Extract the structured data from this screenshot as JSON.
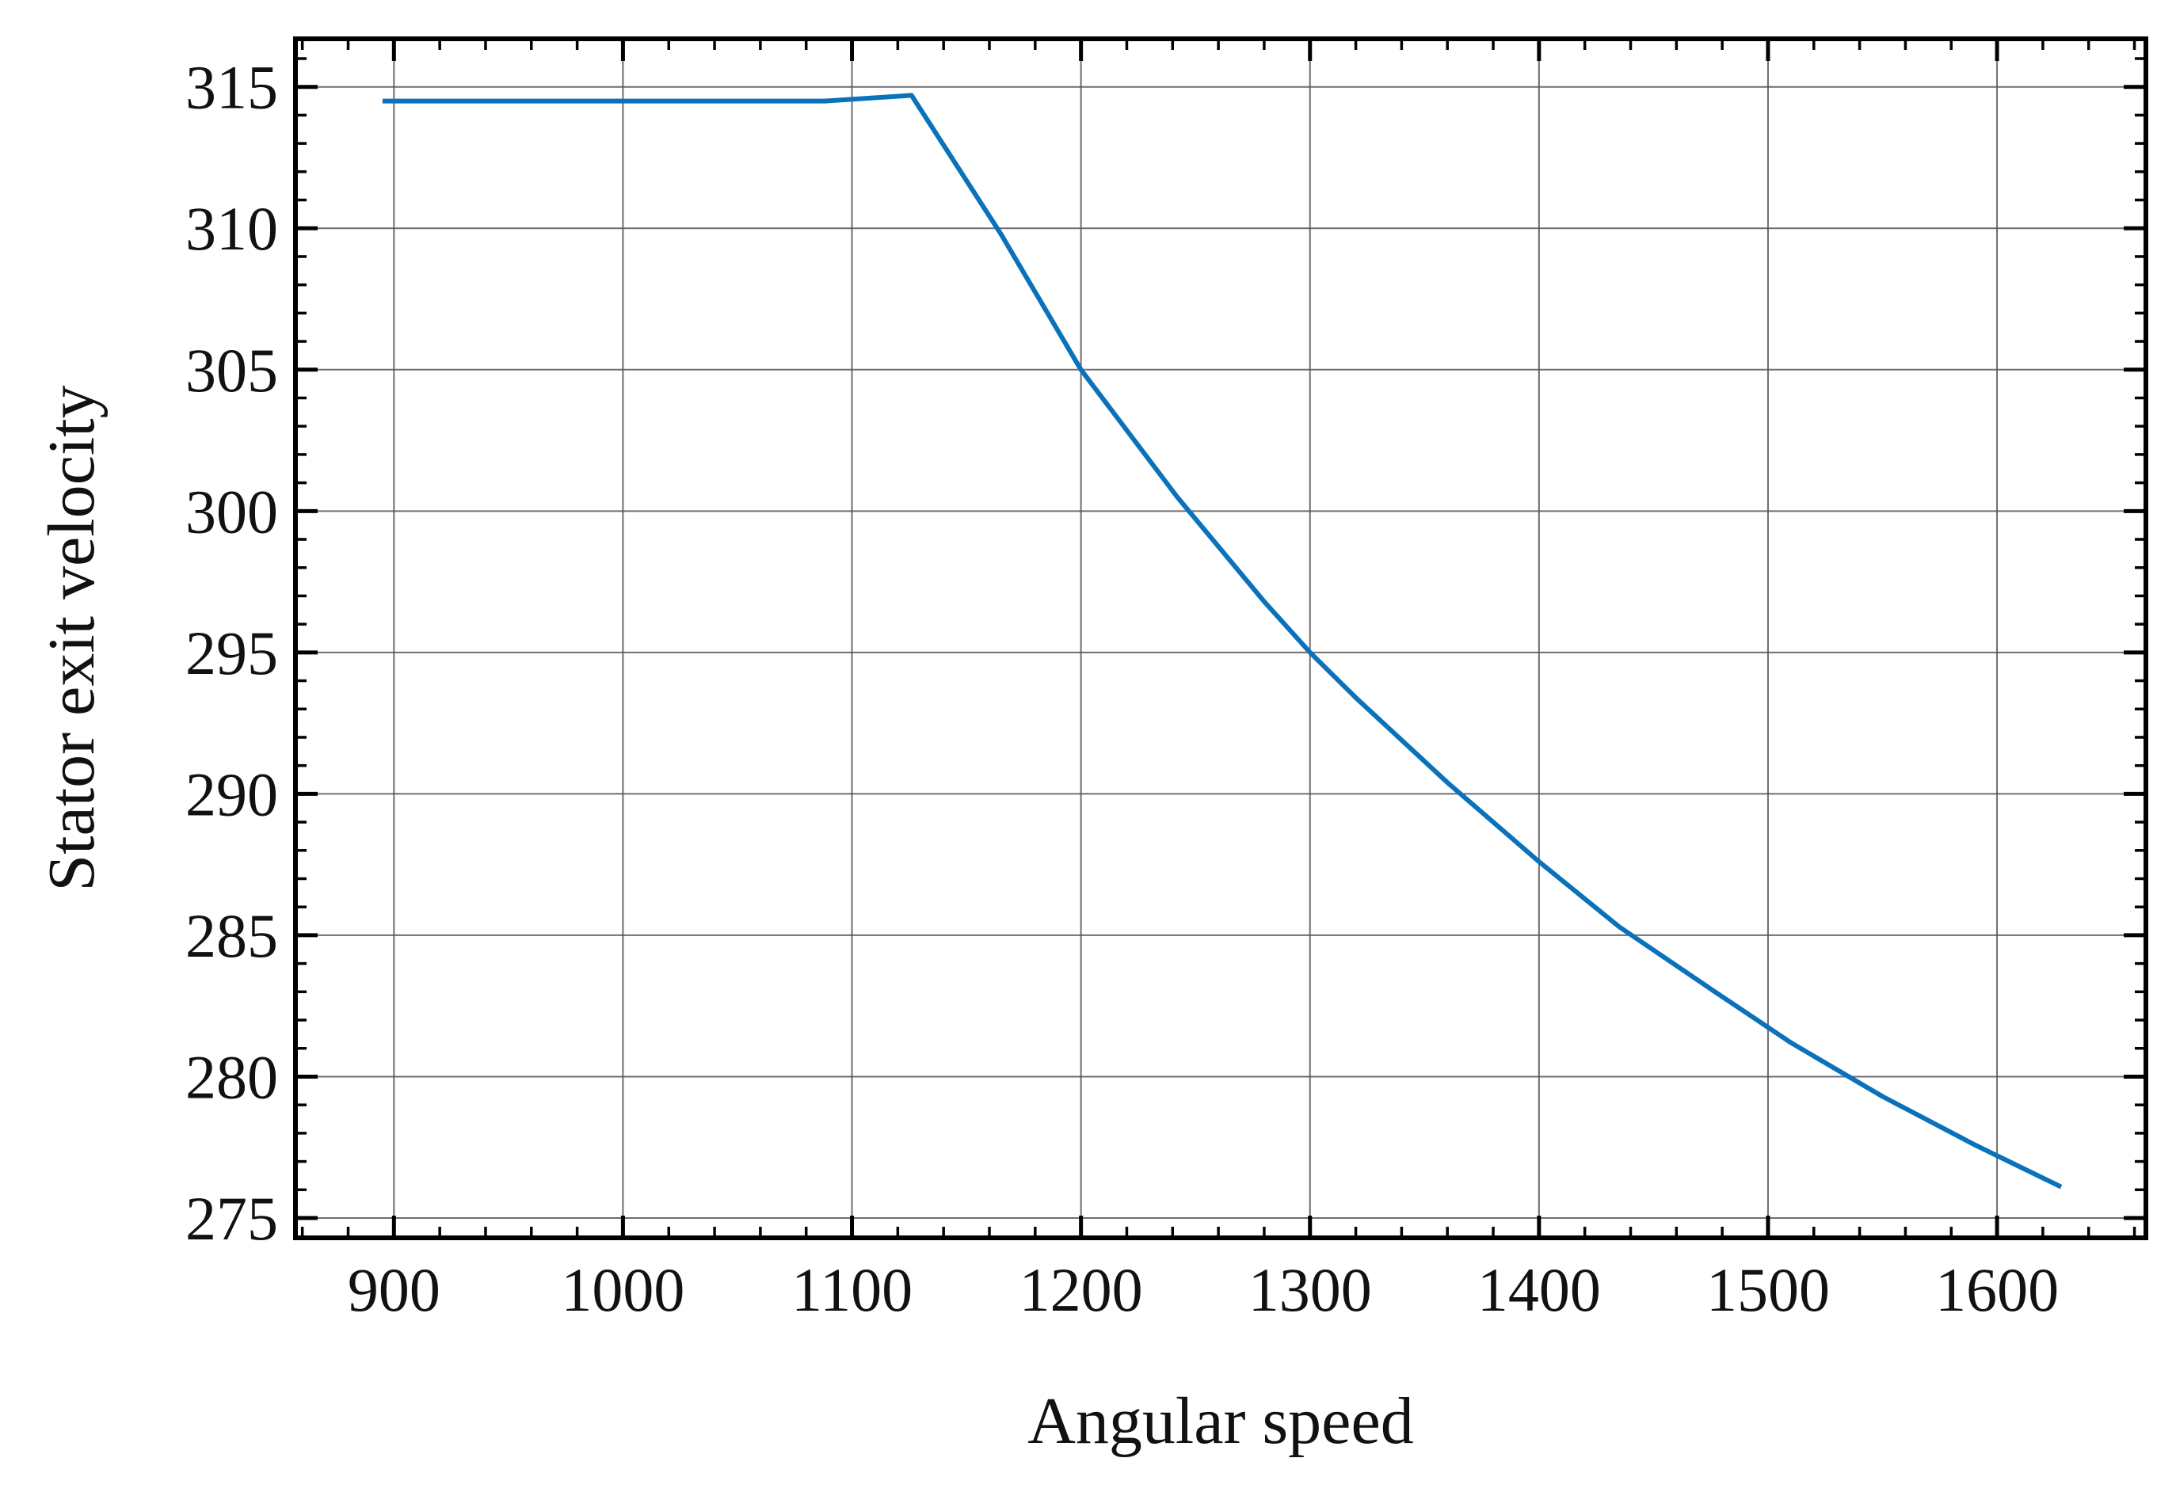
{
  "chart_data": {
    "type": "line",
    "title": "",
    "xlabel": "Angular speed",
    "ylabel": "Stator exit velocity",
    "xlim": [
      857,
      1665
    ],
    "ylim": [
      274.3,
      316.7
    ],
    "x_ticks": [
      900,
      1000,
      1100,
      1200,
      1300,
      1400,
      1500,
      1600
    ],
    "y_ticks": [
      275,
      280,
      285,
      290,
      295,
      300,
      305,
      310,
      315
    ],
    "x_tick_labels": [
      "900",
      "1000",
      "1100",
      "1200",
      "1300",
      "1400",
      "1500",
      "1600"
    ],
    "y_tick_labels": [
      "275",
      "280",
      "285",
      "290",
      "295",
      "300",
      "305",
      "310",
      "315"
    ],
    "grid": true,
    "legend": "none",
    "series": [
      {
        "color": "#0a72ba",
        "x": [
          895,
          950,
          1000,
          1050,
          1088,
          1126,
          1165,
          1200,
          1242,
          1280,
          1300,
          1320,
          1360,
          1400,
          1435,
          1475,
          1510,
          1550,
          1590,
          1628
        ],
        "y": [
          314.5,
          314.5,
          314.5,
          314.5,
          314.5,
          314.7,
          309.8,
          305.0,
          300.5,
          296.8,
          295.0,
          293.4,
          290.4,
          287.6,
          285.3,
          283.1,
          281.2,
          279.3,
          277.6,
          276.1
        ]
      }
    ]
  }
}
